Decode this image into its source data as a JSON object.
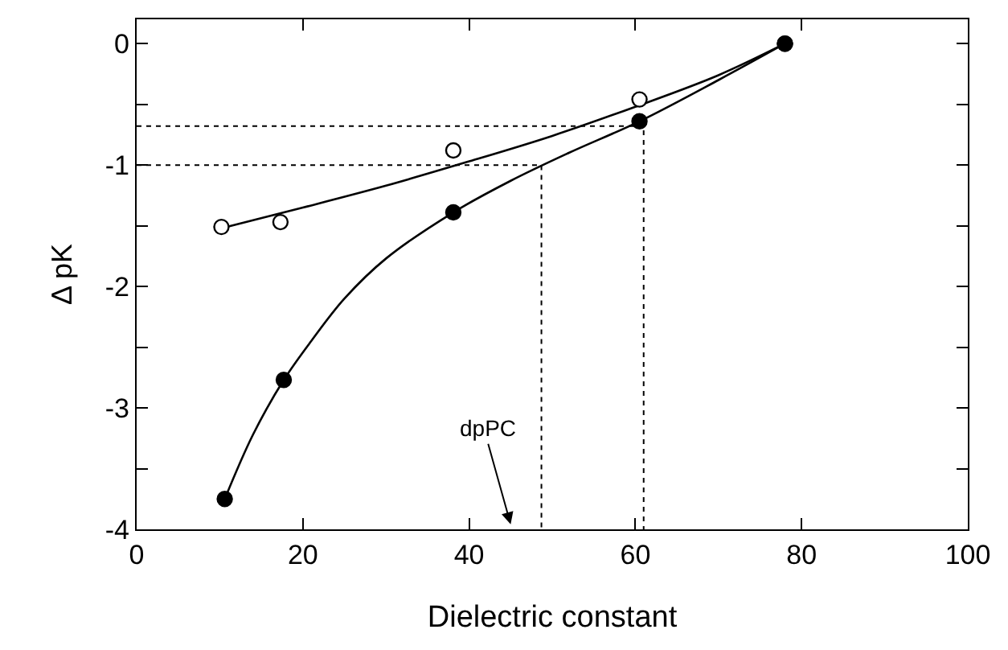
{
  "chart_data": {
    "type": "scatter",
    "xlabel": "Dielectric constant",
    "ylabel": "Δ pK",
    "xlim": [
      0,
      100
    ],
    "ylim": [
      -4,
      0.2
    ],
    "xticks": [
      0,
      20,
      40,
      60,
      80,
      100
    ],
    "yticks": [
      {
        "value": -4,
        "label": "-4"
      },
      {
        "value": -3.5,
        "label": null
      },
      {
        "value": -3,
        "label": "-3"
      },
      {
        "value": -2.5,
        "label": null
      },
      {
        "value": -2,
        "label": "-2"
      },
      {
        "value": -1.5,
        "label": null
      },
      {
        "value": -1,
        "label": "-1"
      },
      {
        "value": -0.5,
        "label": null
      },
      0
    ],
    "series": [
      {
        "type": "line",
        "marker": "none",
        "line_style": "dotted",
        "color": "#000000",
        "x": [
          0,
          61,
          61
        ],
        "values": [
          -0.68,
          -0.68,
          -4
        ]
      },
      {
        "type": "line",
        "marker": "none",
        "line_style": "dotted",
        "color": "#000000",
        "x": [
          0,
          48.7,
          48.7
        ],
        "values": [
          -1,
          -1,
          -4
        ]
      },
      {
        "type": "line",
        "marker": "none",
        "line_style": "solid",
        "color": "#000000",
        "x": [
          10.2,
          20,
          30,
          40,
          50,
          60,
          70,
          78
        ],
        "values": [
          -1.52,
          -1.35,
          -1.17,
          -0.97,
          -0.76,
          -0.52,
          -0.26,
          0
        ]
      },
      {
        "type": "line",
        "marker": "none",
        "line_style": "solid",
        "color": "#000000",
        "x": [
          10.6,
          14,
          17.7,
          21,
          25,
          30,
          38.1,
          45,
          52,
          60.5,
          70,
          78
        ],
        "values": [
          -3.75,
          -3.22,
          -2.77,
          -2.45,
          -2.1,
          -1.77,
          -1.39,
          -1.13,
          -0.9,
          -0.64,
          -0.3,
          0
        ]
      },
      {
        "marker": "circle",
        "color": "#ffffff",
        "x": [
          10.2,
          17.3,
          38.1,
          60.5,
          78
        ],
        "values": [
          -1.51,
          -1.47,
          -0.88,
          -0.46,
          0
        ]
      },
      {
        "marker": "circle",
        "color": "#000000",
        "x": [
          10.6,
          17.7,
          38.1,
          60.5,
          78
        ],
        "values": [
          -3.75,
          -2.77,
          -1.39,
          -0.64,
          0
        ]
      }
    ],
    "annotations": [
      "dpPC"
    ]
  }
}
